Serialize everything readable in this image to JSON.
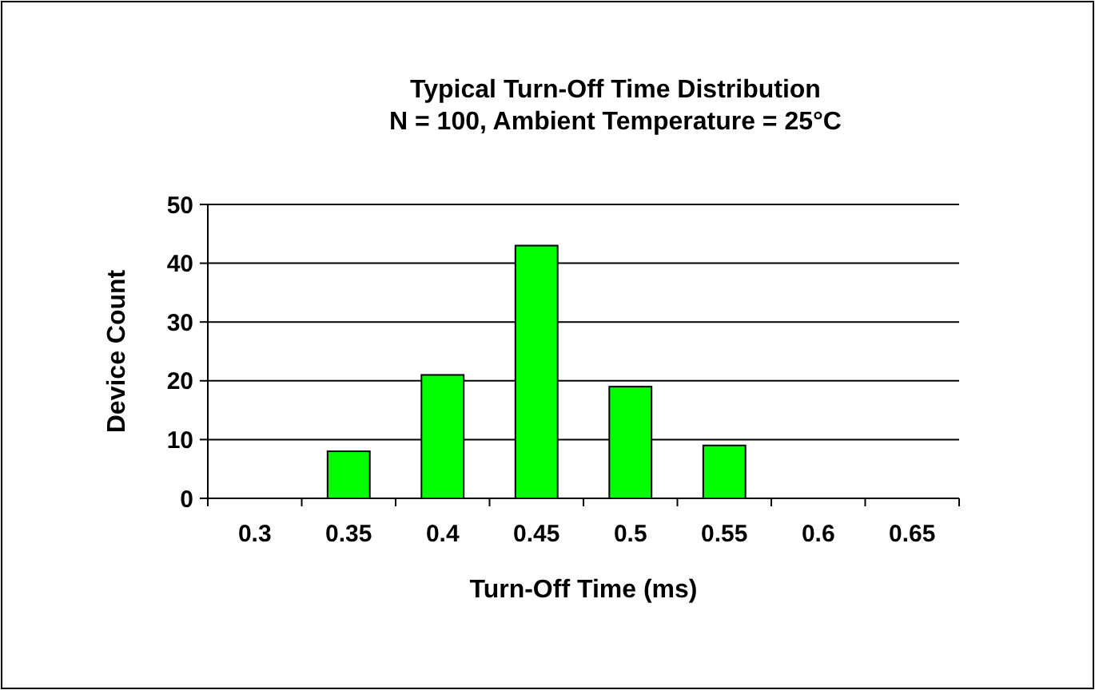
{
  "chart_data": {
    "type": "bar",
    "title": "Typical Turn-Off Time Distribution",
    "subtitle": "N = 100, Ambient Temperature = 25°C",
    "xlabel": "Turn-Off Time (ms)",
    "ylabel": "Device Count",
    "categories": [
      "0.3",
      "0.35",
      "0.4",
      "0.45",
      "0.5",
      "0.55",
      "0.6",
      "0.65"
    ],
    "values": [
      0,
      8,
      21,
      43,
      19,
      9,
      0,
      0
    ],
    "color": "#00ff00",
    "ylim": [
      0,
      50
    ],
    "yticks": [
      0,
      10,
      20,
      30,
      40,
      50
    ],
    "grid": "y"
  }
}
